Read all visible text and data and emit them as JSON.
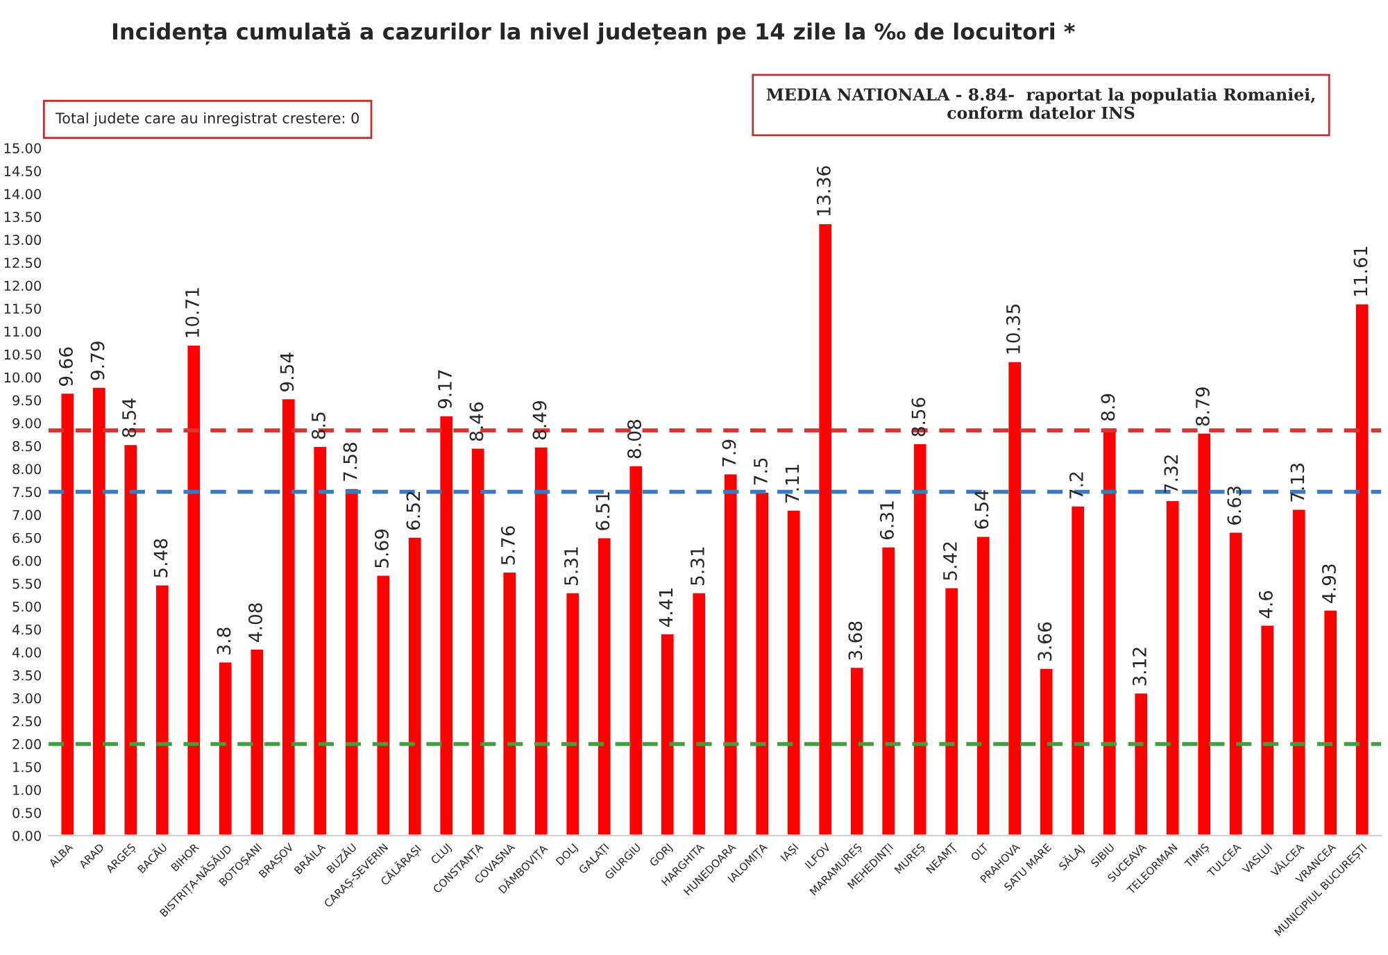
{
  "chart_data": {
    "type": "bar",
    "title": "Incidența cumulată a cazurilor la nivel județean pe 14 zile la ‰ de locuitori *",
    "categories": [
      "ALBA",
      "ARAD",
      "ARGEȘ",
      "BACĂU",
      "BIHOR",
      "BISTRIȚA-NĂSĂUD",
      "BOTOȘANI",
      "BRAȘOV",
      "BRĂILA",
      "BUZĂU",
      "CARAȘ-SEVERIN",
      "CĂLĂRAȘI",
      "CLUJ",
      "CONSTANȚA",
      "COVASNA",
      "DÂMBOVIȚA",
      "DOLJ",
      "GALAȚI",
      "GIURGIU",
      "GORJ",
      "HARGHITA",
      "HUNEDOARA",
      "IALOMIȚA",
      "IAȘI",
      "ILFOV",
      "MARAMUREȘ",
      "MEHEDINȚI",
      "MUREȘ",
      "NEAMȚ",
      "OLT",
      "PRAHOVA",
      "SATU MARE",
      "SĂLAJ",
      "SIBIU",
      "SUCEAVA",
      "TELEORMAN",
      "TIMIȘ",
      "TULCEA",
      "VASLUI",
      "VÂLCEA",
      "VRANCEA",
      "MUNICIPIUL BUCUREȘTI"
    ],
    "values": [
      9.66,
      9.79,
      8.54,
      5.48,
      10.71,
      3.8,
      4.08,
      9.54,
      8.5,
      7.58,
      5.69,
      6.52,
      9.17,
      8.46,
      5.76,
      8.49,
      5.31,
      6.51,
      8.08,
      4.41,
      5.31,
      7.9,
      7.5,
      7.11,
      13.36,
      3.68,
      6.31,
      8.56,
      5.42,
      6.54,
      10.35,
      3.66,
      7.2,
      8.9,
      3.12,
      7.32,
      8.79,
      6.63,
      4.6,
      7.13,
      4.93,
      11.61
    ],
    "color": "#ff0000",
    "data_labels": true,
    "ylim": [
      0,
      15
    ],
    "yticks": [
      {
        "value": 0,
        "label": "0.00"
      },
      {
        "value": 0.5,
        "label": "0.50"
      },
      {
        "value": 1,
        "label": "1.00"
      },
      {
        "value": 1.5,
        "label": "1.50"
      },
      {
        "value": 2,
        "label": "2.00"
      },
      {
        "value": 2.5,
        "label": "2.50"
      },
      {
        "value": 3,
        "label": "3.00"
      },
      {
        "value": 3.5,
        "label": "3.50"
      },
      {
        "value": 4,
        "label": "4.00"
      },
      {
        "value": 4.5,
        "label": "4.50"
      },
      {
        "value": 5,
        "label": "5.00"
      },
      {
        "value": 5.5,
        "label": "5.50"
      },
      {
        "value": 6,
        "label": "6.00"
      },
      {
        "value": 6.5,
        "label": "6.50"
      },
      {
        "value": 7,
        "label": "7.00"
      },
      {
        "value": 7.5,
        "label": "7.50"
      },
      {
        "value": 8,
        "label": "8.00"
      },
      {
        "value": 8.5,
        "label": "8.50"
      },
      {
        "value": 9,
        "label": "9.00"
      },
      {
        "value": 9.5,
        "label": "9.50"
      },
      {
        "value": 10,
        "label": "10.00"
      },
      {
        "value": 10.5,
        "label": "10.50"
      },
      {
        "value": 11,
        "label": "11.00"
      },
      {
        "value": 11.5,
        "label": "11.50"
      },
      {
        "value": 12,
        "label": "12.00"
      },
      {
        "value": 12.5,
        "label": "12.50"
      },
      {
        "value": 13,
        "label": "13.00"
      },
      {
        "value": 13.5,
        "label": "13.50"
      },
      {
        "value": 14,
        "label": "14.00"
      },
      {
        "value": 14.5,
        "label": "14.50"
      },
      {
        "value": 15,
        "label": "15.00"
      }
    ],
    "ref_lines": [
      {
        "axis": "y",
        "value": 8.84,
        "color": "#e03030",
        "line_style": "dashed"
      },
      {
        "axis": "y",
        "value": 7.5,
        "color": "#3a7ac0",
        "line_style": "dashed"
      },
      {
        "axis": "y",
        "value": 2,
        "color": "#40a040",
        "line_style": "dashed"
      }
    ],
    "annotations": [
      "Total judete care au inregistrat crestere: 0",
      "MEDIA NATIONALA - 8.84-  raportat la populatia Romaniei,\nconform datelor INS"
    ],
    "grid": false,
    "legend": false
  }
}
